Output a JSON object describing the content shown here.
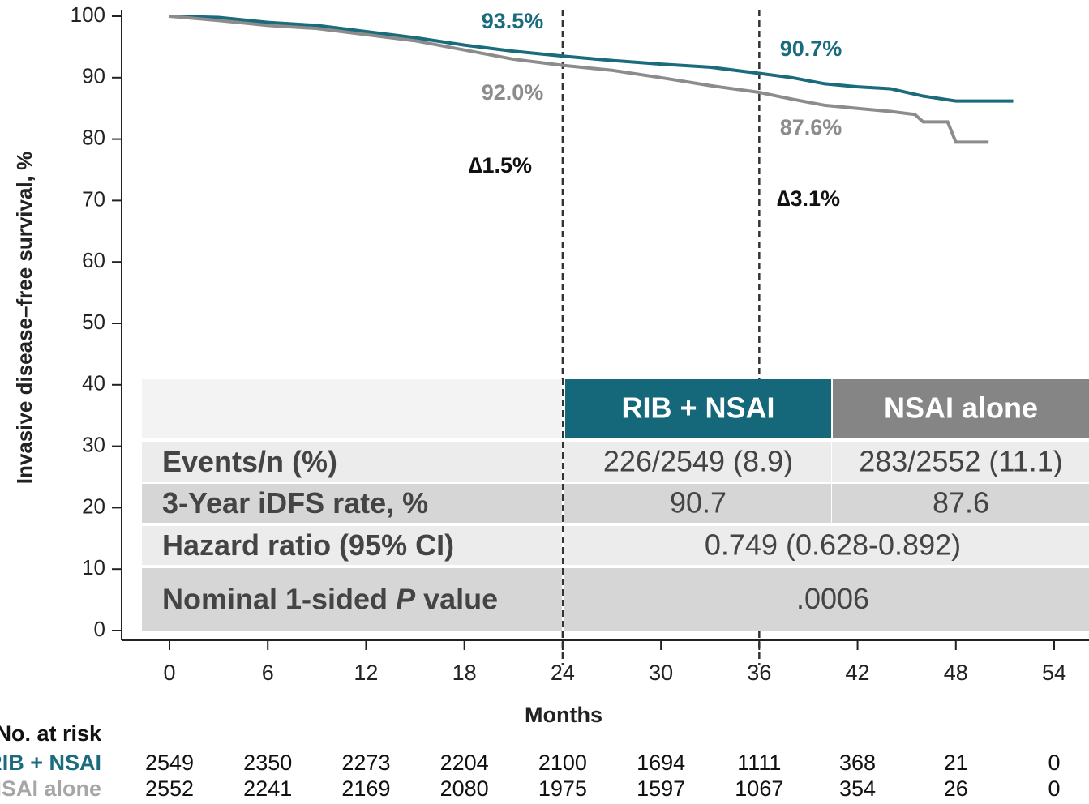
{
  "chart_data": {
    "type": "line",
    "x_label": "Months",
    "y_label": "Invasive disease–free survival, %",
    "xlim": [
      0,
      54
    ],
    "ylim": [
      0,
      100
    ],
    "xticks": [
      0,
      6,
      12,
      18,
      24,
      30,
      36,
      42,
      48,
      54
    ],
    "yticks": [
      0,
      10,
      20,
      30,
      40,
      50,
      60,
      70,
      80,
      90,
      100
    ],
    "vlines": [
      24,
      36
    ],
    "series": [
      {
        "name": "RIB + NSAI",
        "color": "#1a6b7c",
        "x": [
          0,
          3,
          6,
          9,
          12,
          15,
          18,
          21,
          24,
          27,
          30,
          33,
          36,
          38,
          40,
          42,
          44,
          46,
          48,
          50,
          51.5
        ],
        "values": [
          100,
          99.8,
          99,
          98.5,
          97.5,
          96.5,
          95.3,
          94.3,
          93.5,
          92.8,
          92.2,
          91.7,
          90.7,
          90,
          89,
          88.5,
          88.2,
          87,
          86.2,
          86.2,
          86.2
        ]
      },
      {
        "name": "NSAI alone",
        "color": "#8c8c8c",
        "x": [
          0,
          3,
          6,
          9,
          12,
          15,
          18,
          21,
          24,
          27,
          30,
          33,
          36,
          38,
          40,
          42,
          44,
          45.5,
          46,
          47.5,
          48,
          50
        ],
        "values": [
          100,
          99.3,
          98.5,
          98,
          97,
          96,
          94.5,
          93,
          92,
          91.2,
          90,
          88.7,
          87.6,
          86.5,
          85.5,
          85,
          84.5,
          84,
          82.8,
          82.8,
          79.5,
          79.5
        ]
      }
    ],
    "annotations": [
      "93.5%",
      "92.0%",
      "∆1.5%",
      "90.7%",
      "87.6%",
      "∆3.1%"
    ],
    "risk_table": {
      "title": "No. at risk",
      "rows": [
        {
          "name": "RIB + NSAI",
          "values": [
            "2549",
            "2350",
            "2273",
            "2204",
            "2100",
            "1694",
            "1111",
            "368",
            "21",
            "0"
          ]
        },
        {
          "name": "NSAI alone",
          "values": [
            "2552",
            "2241",
            "2169",
            "2080",
            "1975",
            "1597",
            "1067",
            "354",
            "26",
            "0"
          ]
        }
      ]
    }
  },
  "table": {
    "header": [
      "RIB + NSAI",
      "NSAI alone"
    ],
    "rows": [
      {
        "label": [
          "Events/n (%)"
        ],
        "cells": [
          "226/2549 (8.9)",
          "283/2552 (11.1)"
        ]
      },
      {
        "label": [
          "3-Year iDFS rate, %"
        ],
        "cells": [
          "90.7",
          "87.6"
        ]
      },
      {
        "label": [
          "Hazard ratio (95% CI)"
        ],
        "cells": [
          "0.749 (0.628-0.892)"
        ]
      },
      {
        "label": [
          "Nominal 1-sided",
          "P",
          "value"
        ],
        "cells": [
          ".0006"
        ]
      }
    ]
  }
}
